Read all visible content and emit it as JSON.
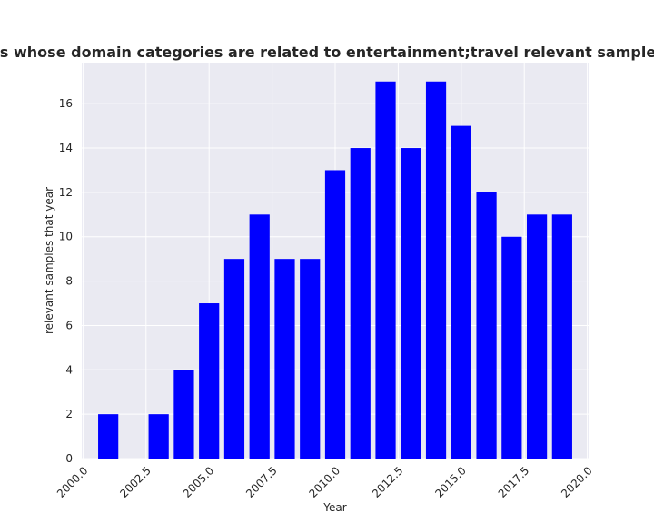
{
  "colors": {
    "plot_background": "#eaeaf2",
    "grid": "#ffffff",
    "bar": "#0000ff",
    "text": "#262626"
  },
  "chart_data": {
    "type": "bar",
    "title": "Which percentage of privacy policies whose domain categories are related to entertainment;travel relevant samples that year in privacy policies by year",
    "xlabel": "Year",
    "ylabel": "relevant samples that year",
    "x": [
      2001,
      2002,
      2003,
      2004,
      2005,
      2006,
      2007,
      2008,
      2009,
      2010,
      2011,
      2012,
      2013,
      2014,
      2015,
      2016,
      2017,
      2018,
      2019
    ],
    "values": [
      2,
      0,
      2,
      4,
      7,
      9,
      11,
      9,
      9,
      13,
      14,
      17,
      14,
      17,
      15,
      12,
      10,
      11,
      11
    ],
    "xlim": [
      1999.95,
      2020.05
    ],
    "ylim": [
      0,
      17.85
    ],
    "xticks": [
      2000.0,
      2002.5,
      2005.0,
      2007.5,
      2010.0,
      2012.5,
      2015.0,
      2017.5,
      2020.0
    ],
    "xtick_labels": [
      "2000.0",
      "2002.5",
      "2005.0",
      "2007.5",
      "2010.0",
      "2012.5",
      "2015.0",
      "2017.5",
      "2020.0"
    ],
    "yticks": [
      0,
      2,
      4,
      6,
      8,
      10,
      12,
      14,
      16
    ],
    "ytick_labels": [
      "0",
      "2",
      "4",
      "6",
      "8",
      "10",
      "12",
      "14",
      "16"
    ],
    "bar_width": 0.8,
    "grid": true,
    "legend": "none"
  }
}
